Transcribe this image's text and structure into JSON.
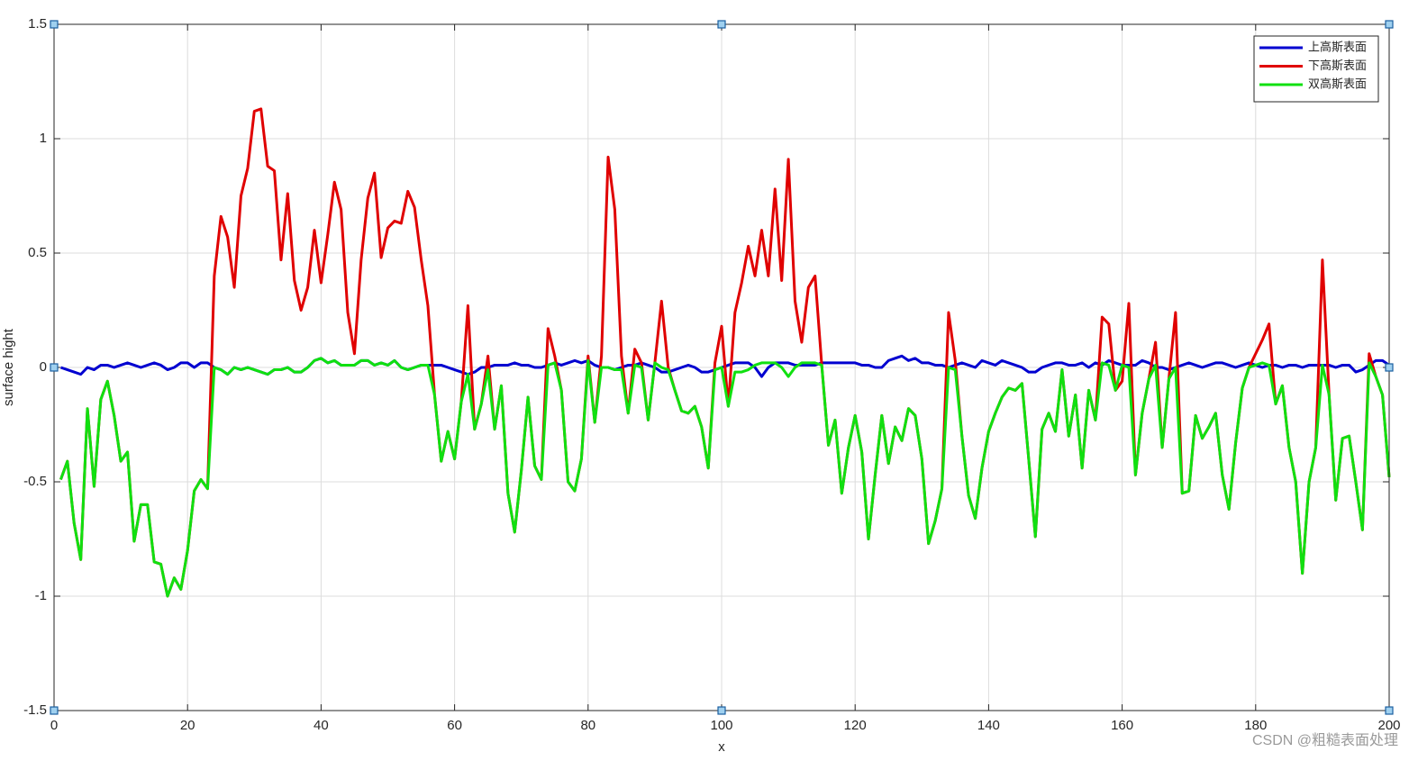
{
  "chart_data": {
    "type": "line",
    "xlabel": "x",
    "ylabel": "surface hight",
    "watermark": "CSDN @粗糙表面处理",
    "xlim": [
      0,
      200
    ],
    "xticks": [
      0,
      20,
      40,
      60,
      80,
      100,
      120,
      140,
      160,
      180,
      200
    ],
    "ylim": [
      -1.5,
      1.5
    ],
    "yticks": [
      -1.5,
      -1,
      -0.5,
      0,
      0.5,
      1,
      1.5
    ],
    "grid": true,
    "legend": "northeast",
    "x": [
      1,
      2,
      3,
      4,
      5,
      6,
      7,
      8,
      9,
      10,
      11,
      12,
      13,
      14,
      15,
      16,
      17,
      18,
      19,
      20,
      21,
      22,
      23,
      24,
      25,
      26,
      27,
      28,
      29,
      30,
      31,
      32,
      33,
      34,
      35,
      36,
      37,
      38,
      39,
      40,
      41,
      42,
      43,
      44,
      45,
      46,
      47,
      48,
      49,
      50,
      51,
      52,
      53,
      54,
      55,
      56,
      57,
      58,
      59,
      60,
      61,
      62,
      63,
      64,
      65,
      66,
      67,
      68,
      69,
      70,
      71,
      72,
      73,
      74,
      75,
      76,
      77,
      78,
      79,
      80,
      81,
      82,
      83,
      84,
      85,
      86,
      87,
      88,
      89,
      90,
      91,
      92,
      93,
      94,
      95,
      96,
      97,
      98,
      99,
      100,
      101,
      102,
      103,
      104,
      105,
      106,
      107,
      108,
      109,
      110,
      111,
      112,
      113,
      114,
      115,
      116,
      117,
      118,
      119,
      120,
      121,
      122,
      123,
      124,
      125,
      126,
      127,
      128,
      129,
      130,
      131,
      132,
      133,
      134,
      135,
      136,
      137,
      138,
      139,
      140,
      141,
      142,
      143,
      144,
      145,
      146,
      147,
      148,
      149,
      150,
      151,
      152,
      153,
      154,
      155,
      156,
      157,
      158,
      159,
      160,
      161,
      162,
      163,
      164,
      165,
      166,
      167,
      168,
      169,
      170,
      171,
      172,
      173,
      174,
      175,
      176,
      177,
      178,
      179,
      180,
      181,
      182,
      183,
      184,
      185,
      186,
      187,
      188,
      189,
      190,
      191,
      192,
      193,
      194,
      195,
      196,
      197,
      198,
      199,
      200
    ],
    "series": [
      {
        "name": "上高斯表面",
        "color": "#0000d0",
        "values": [
          0,
          -0.01,
          -0.02,
          -0.03,
          0,
          -0.01,
          0.01,
          0.01,
          0,
          0.01,
          0.02,
          0.01,
          0,
          0.01,
          0.02,
          0.01,
          -0.01,
          0,
          0.02,
          0.02,
          0,
          0.02,
          0.02,
          0,
          -0.01,
          -0.03,
          0,
          -0.01,
          0,
          -0.01,
          -0.02,
          -0.03,
          -0.01,
          -0.01,
          0,
          -0.02,
          -0.02,
          0,
          0.03,
          0.04,
          0.02,
          0.03,
          0.01,
          0.01,
          0.01,
          0.03,
          0.03,
          0.01,
          0.02,
          0.01,
          0.03,
          0,
          -0.01,
          0,
          0.01,
          0.01,
          0.01,
          0.01,
          0,
          -0.01,
          -0.02,
          -0.03,
          -0.02,
          0,
          0,
          0.01,
          0.01,
          0.01,
          0.02,
          0.01,
          0.01,
          0,
          0,
          0.01,
          0.02,
          0.01,
          0.02,
          0.03,
          0.02,
          0.03,
          0.01,
          0,
          0,
          -0.01,
          0,
          0.01,
          0.01,
          0.02,
          0.01,
          0,
          -0.02,
          -0.02,
          -0.01,
          0,
          0.01,
          0,
          -0.02,
          -0.02,
          -0.01,
          0,
          0.01,
          0.02,
          0.02,
          0.02,
          0,
          -0.04,
          0,
          0.02,
          0.02,
          0.02,
          0.01,
          0.01,
          0.01,
          0.01,
          0.02,
          0.02,
          0.02,
          0.02,
          0.02,
          0.02,
          0.01,
          0.01,
          0,
          0,
          0.03,
          0.04,
          0.05,
          0.03,
          0.04,
          0.02,
          0.02,
          0.01,
          0.01,
          0,
          0.01,
          0.02,
          0.01,
          0,
          0.03,
          0.02,
          0.01,
          0.03,
          0.02,
          0.01,
          0,
          -0.02,
          -0.02,
          0,
          0.01,
          0.02,
          0.02,
          0.01,
          0.01,
          0.02,
          0,
          0.02,
          0.01,
          0.03,
          0.02,
          0.01,
          0.01,
          0.01,
          0.03,
          0.02,
          0,
          0,
          -0.01,
          0,
          0.01,
          0.02,
          0.01,
          0,
          0.01,
          0.02,
          0.02,
          0.01,
          0,
          0.01,
          0.02,
          0.01,
          0,
          0.01,
          0.01,
          0,
          0.01,
          0.01,
          0,
          0.01,
          0.01,
          0.01,
          0.01,
          0,
          0.01,
          0.01,
          -0.02,
          -0.01,
          0.01,
          0.03,
          0.03,
          0.01
        ]
      },
      {
        "name": "下高斯表面",
        "color": "#e00000",
        "values": [
          -0.49,
          -0.41,
          -0.68,
          -0.84,
          -0.18,
          -0.52,
          -0.14,
          -0.06,
          -0.21,
          -0.41,
          -0.37,
          -0.76,
          -0.6,
          -0.6,
          -0.85,
          -0.86,
          -1.0,
          -0.92,
          -0.97,
          -0.8,
          -0.54,
          -0.49,
          -0.53,
          0.4,
          0.66,
          0.57,
          0.35,
          0.75,
          0.87,
          1.12,
          1.13,
          0.88,
          0.86,
          0.47,
          0.76,
          0.38,
          0.25,
          0.35,
          0.6,
          0.37,
          0.58,
          0.81,
          0.69,
          0.24,
          0.06,
          0.47,
          0.74,
          0.85,
          0.48,
          0.61,
          0.64,
          0.63,
          0.77,
          0.7,
          0.47,
          0.27,
          -0.12,
          -0.41,
          -0.28,
          -0.4,
          -0.15,
          0.27,
          -0.27,
          -0.16,
          0.05,
          -0.27,
          -0.08,
          -0.55,
          -0.72,
          -0.45,
          -0.13,
          -0.43,
          -0.49,
          0.17,
          0.05,
          -0.1,
          -0.5,
          -0.54,
          -0.4,
          0.05,
          -0.24,
          0.05,
          0.92,
          0.69,
          0.05,
          -0.2,
          0.08,
          0.02,
          -0.23,
          0.02,
          0.29,
          0,
          -0.1,
          -0.19,
          -0.2,
          -0.17,
          -0.26,
          -0.44,
          0.02,
          0.18,
          -0.17,
          0.24,
          0.37,
          0.53,
          0.4,
          0.6,
          0.4,
          0.78,
          0.38,
          0.91,
          0.29,
          0.11,
          0.35,
          0.4,
          0.01,
          -0.34,
          -0.23,
          -0.55,
          -0.35,
          -0.21,
          -0.37,
          -0.75,
          -0.47,
          -0.21,
          -0.42,
          -0.26,
          -0.32,
          -0.18,
          -0.21,
          -0.4,
          -0.77,
          -0.67,
          -0.53,
          0.24,
          0.03,
          -0.3,
          -0.56,
          -0.66,
          -0.44,
          -0.28,
          -0.2,
          -0.13,
          -0.09,
          -0.1,
          -0.07,
          -0.4,
          -0.74,
          -0.27,
          -0.2,
          -0.28,
          -0.01,
          -0.3,
          -0.12,
          -0.44,
          -0.1,
          -0.23,
          0.22,
          0.19,
          -0.1,
          -0.06,
          0.28,
          -0.47,
          -0.2,
          -0.05,
          0.11,
          -0.35,
          -0.05,
          0.24,
          -0.55,
          -0.54,
          -0.21,
          -0.31,
          -0.26,
          -0.2,
          -0.47,
          -0.62,
          -0.33,
          -0.09,
          0,
          0.06,
          0.12,
          0.19,
          -0.16,
          -0.08,
          -0.35,
          -0.5,
          -0.9,
          -0.5,
          -0.35,
          0.47,
          -0.12,
          -0.58,
          -0.31,
          -0.3,
          -0.5,
          -0.71,
          0.06,
          -0.04,
          -0.12,
          -0.48
        ]
      },
      {
        "name": "双高斯表面",
        "color": "#10e010",
        "values": [
          -0.49,
          -0.41,
          -0.68,
          -0.84,
          -0.18,
          -0.52,
          -0.14,
          -0.06,
          -0.21,
          -0.41,
          -0.37,
          -0.76,
          -0.6,
          -0.6,
          -0.85,
          -0.86,
          -1.0,
          -0.92,
          -0.97,
          -0.8,
          -0.54,
          -0.49,
          -0.53,
          0,
          -0.01,
          -0.03,
          0,
          -0.01,
          0,
          -0.01,
          -0.02,
          -0.03,
          -0.01,
          -0.01,
          0,
          -0.02,
          -0.02,
          0,
          0.03,
          0.04,
          0.02,
          0.03,
          0.01,
          0.01,
          0.01,
          0.03,
          0.03,
          0.01,
          0.02,
          0.01,
          0.03,
          0,
          -0.01,
          0,
          0.01,
          0.01,
          -0.12,
          -0.41,
          -0.28,
          -0.4,
          -0.15,
          -0.03,
          -0.27,
          -0.16,
          -0.01,
          -0.27,
          -0.08,
          -0.55,
          -0.72,
          -0.45,
          -0.13,
          -0.43,
          -0.49,
          0.01,
          0.02,
          -0.1,
          -0.5,
          -0.54,
          -0.4,
          0.03,
          -0.24,
          0,
          0,
          -0.01,
          -0.01,
          -0.2,
          0.01,
          0,
          -0.23,
          0.02,
          0,
          -0.01,
          -0.1,
          -0.19,
          -0.2,
          -0.17,
          -0.26,
          -0.44,
          -0.01,
          0,
          -0.17,
          -0.02,
          -0.02,
          -0.01,
          0.01,
          0.02,
          0.02,
          0.02,
          0,
          -0.04,
          0,
          0.02,
          0.02,
          0.02,
          0.01,
          -0.34,
          -0.23,
          -0.55,
          -0.35,
          -0.21,
          -0.37,
          -0.75,
          -0.47,
          -0.21,
          -0.42,
          -0.26,
          -0.32,
          -0.18,
          -0.21,
          -0.4,
          -0.77,
          -0.67,
          -0.53,
          0,
          -0.01,
          -0.3,
          -0.56,
          -0.66,
          -0.44,
          -0.28,
          -0.2,
          -0.13,
          -0.09,
          -0.1,
          -0.07,
          -0.4,
          -0.74,
          -0.27,
          -0.2,
          -0.28,
          -0.01,
          -0.3,
          -0.12,
          -0.44,
          -0.1,
          -0.23,
          0.02,
          0.01,
          -0.1,
          0.01,
          0,
          -0.47,
          -0.2,
          -0.05,
          0.01,
          -0.35,
          -0.05,
          0,
          -0.55,
          -0.54,
          -0.21,
          -0.31,
          -0.26,
          -0.2,
          -0.47,
          -0.62,
          -0.33,
          -0.09,
          0,
          0.01,
          0.02,
          0.01,
          -0.16,
          -0.08,
          -0.35,
          -0.5,
          -0.9,
          -0.5,
          -0.35,
          0.01,
          -0.12,
          -0.58,
          -0.31,
          -0.3,
          -0.5,
          -0.71,
          0.02,
          -0.04,
          -0.12,
          -0.48
        ]
      }
    ]
  }
}
